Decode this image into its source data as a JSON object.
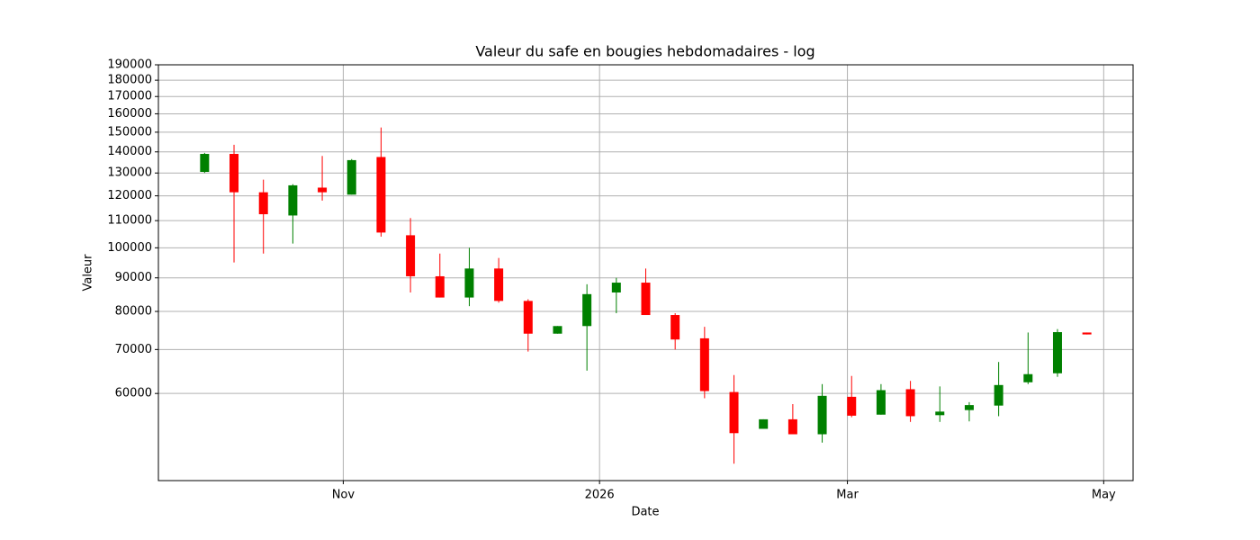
{
  "chart_data": {
    "type": "candlestick",
    "title": "Valeur du safe en bougies hebdomadaires - log",
    "xlabel": "Date",
    "ylabel": "Valeur",
    "log_y": true,
    "grid": true,
    "up_color": "green",
    "down_color": "red",
    "x": [
      "2025-09-29",
      "2025-10-06",
      "2025-10-13",
      "2025-10-20",
      "2025-10-27",
      "2025-11-03",
      "2025-11-10",
      "2025-11-17",
      "2025-11-24",
      "2025-12-01",
      "2025-12-08",
      "2025-12-15",
      "2025-12-22",
      "2025-12-29",
      "2026-01-05",
      "2026-01-12",
      "2026-01-19",
      "2026-01-26",
      "2026-02-02",
      "2026-02-09",
      "2026-02-16",
      "2026-02-23",
      "2026-03-02",
      "2026-03-09",
      "2026-03-16",
      "2026-03-23",
      "2026-03-30",
      "2026-04-06",
      "2026-04-13",
      "2026-04-20",
      "2026-04-27"
    ],
    "open": [
      130500,
      139000,
      121500,
      112000,
      123500,
      120500,
      137500,
      104500,
      90500,
      84000,
      93000,
      83000,
      74000,
      76000,
      85500,
      88500,
      79000,
      72800,
      60300,
      53000,
      54800,
      52000,
      59300,
      55700,
      60900,
      55600,
      56600,
      57500,
      62400,
      64400,
      74300
    ],
    "high": [
      139500,
      143500,
      127000,
      125000,
      138000,
      136500,
      152500,
      111000,
      98000,
      100000,
      96500,
      83500,
      76000,
      88000,
      90000,
      93000,
      79500,
      75800,
      64000,
      54800,
      57800,
      62000,
      63800,
      62000,
      62700,
      61500,
      58200,
      67000,
      74300,
      75200,
      74300
    ],
    "low": [
      130000,
      95000,
      98000,
      101500,
      118000,
      120500,
      104000,
      85500,
      84000,
      81500,
      82500,
      69500,
      74000,
      65000,
      79500,
      79000,
      70000,
      59000,
      46900,
      53000,
      52000,
      50500,
      55200,
      55700,
      54300,
      54300,
      54400,
      55400,
      62000,
      63600,
      73800
    ],
    "close": [
      139000,
      121500,
      112500,
      124500,
      121500,
      136000,
      105500,
      90500,
      84000,
      93000,
      83000,
      74000,
      76000,
      85000,
      88500,
      79000,
      72500,
      60500,
      52200,
      54800,
      52000,
      59500,
      55500,
      60700,
      55400,
      56300,
      57600,
      61800,
      64200,
      74400,
      73800
    ],
    "xlim": [
      "2025-09-18",
      "2026-05-08"
    ],
    "xticks": [
      {
        "value": "2025-11-01",
        "label": "Nov"
      },
      {
        "value": "2026-01-01",
        "label": "2026"
      },
      {
        "value": "2026-03-01",
        "label": "Mar"
      },
      {
        "value": "2026-05-01",
        "label": "May"
      }
    ],
    "ylim": [
      44200,
      190000
    ],
    "yticks": [
      60000,
      70000,
      80000,
      90000,
      100000,
      110000,
      120000,
      130000,
      140000,
      150000,
      160000,
      170000,
      180000,
      190000
    ]
  }
}
